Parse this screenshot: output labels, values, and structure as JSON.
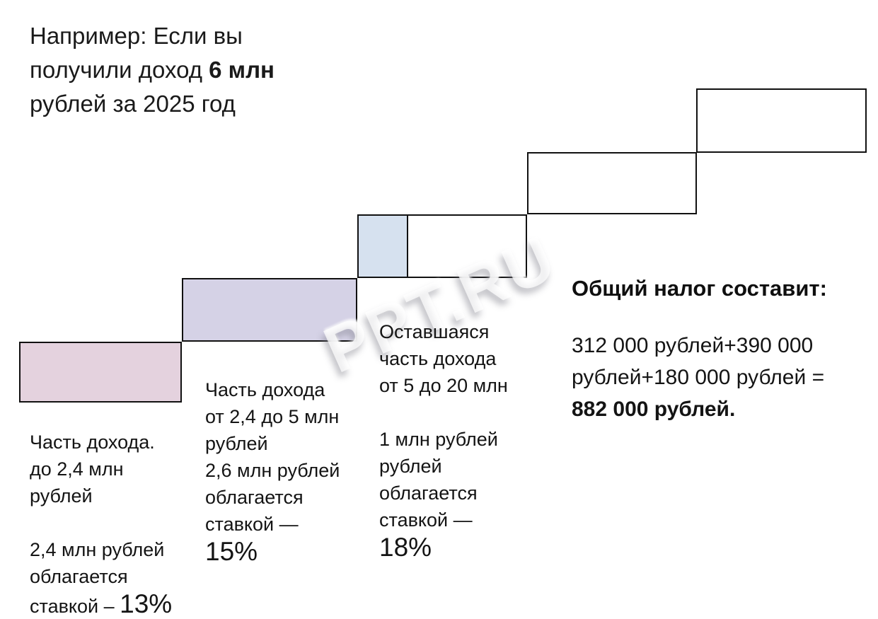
{
  "header": {
    "line1": "Например: Если вы",
    "line2_before": "получили доход ",
    "line2_bold": "6 млн",
    "line3": "рублей за 2025 год"
  },
  "watermark": {
    "text": "PPT.RU"
  },
  "colors": {
    "bracket1_fill": "#e4d2de",
    "bracket2_fill": "#d5d2e6",
    "bracket3_fill": "#d6e1ef",
    "outline": "#111111"
  },
  "brackets": [
    {
      "range_lines": [
        "Часть дохода.",
        "до 2,4 млн",
        "рублей"
      ],
      "tax_lines": [
        "2,4 млн рублей",
        "облагается"
      ],
      "rate_prefix": "ставкой – ",
      "rate": "13%"
    },
    {
      "range_lines": [
        "Часть дохода",
        "от 2,4 до 5 млн",
        "рублей"
      ],
      "tax_lines": [
        "2,6 млн рублей",
        "облагается",
        "ставкой —"
      ],
      "rate": "15%"
    },
    {
      "range_lines": [
        "Оставшаяся",
        "часть дохода",
        "от 5 до 20 млн"
      ],
      "tax_lines": [
        "1 млн рублей",
        "рублей",
        "облагается",
        "ставкой —"
      ],
      "rate": "18%"
    }
  ],
  "total": {
    "title": "Общий налог составит:",
    "calc_line1": "312 000 рублей+390 000",
    "calc_line2": "рублей+180 000 рублей =",
    "calc_line3_bold": "882 000 рублей."
  }
}
